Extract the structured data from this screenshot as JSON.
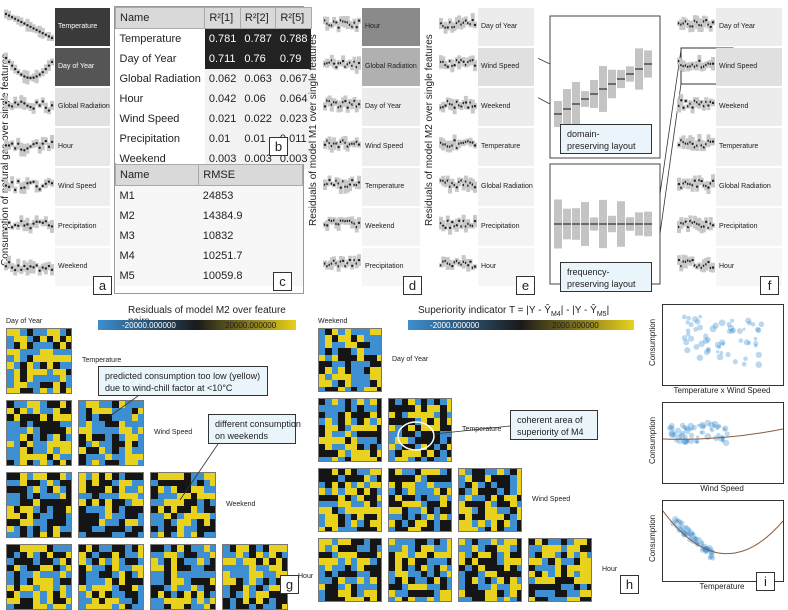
{
  "panel_a": {
    "tag": "a",
    "ylabel": "Consumption of natural gas over single features",
    "features": [
      "Temperature",
      "Day of Year",
      "Global Radiation",
      "Hour",
      "Wind Speed",
      "Precipitation",
      "Weekend"
    ]
  },
  "panel_b": {
    "tag": "b",
    "headers": [
      "Name",
      "R²[1]",
      "R²[2]",
      "R²[5]"
    ],
    "rows": [
      [
        "Temperature",
        "0.781",
        "0.787",
        "0.788"
      ],
      [
        "Day of Year",
        "0.711",
        "0.76",
        "0.79"
      ],
      [
        "Global Radiation",
        "0.062",
        "0.063",
        "0.067"
      ],
      [
        "Hour",
        "0.042",
        "0.06",
        "0.064"
      ],
      [
        "Wind Speed",
        "0.021",
        "0.022",
        "0.023"
      ],
      [
        "Precipitation",
        "0.01",
        "0.01",
        "0.011"
      ],
      [
        "Weekend",
        "0.003",
        "0.003",
        "0.003"
      ]
    ]
  },
  "panel_c": {
    "tag": "c",
    "headers": [
      "Name",
      "RMSE"
    ],
    "rows": [
      [
        "M1",
        "24853"
      ],
      [
        "M2",
        "14384.9"
      ],
      [
        "M3",
        "10832"
      ],
      [
        "M4",
        "10251.7"
      ],
      [
        "M5",
        "10059.8"
      ]
    ]
  },
  "panel_d": {
    "tag": "d",
    "ylabel": "Residuals of model M1 over single features",
    "features": [
      "Hour",
      "Global Radiation",
      "Day of Year",
      "Wind Speed",
      "Temperature",
      "Weekend",
      "Precipitation"
    ]
  },
  "panel_e": {
    "tag": "e",
    "ylabel": "Residuals of model M2 over single features",
    "features": [
      "Day of Year",
      "Wind Speed",
      "Weekend",
      "Temperature",
      "Global Radiation",
      "Precipitation",
      "Hour"
    ]
  },
  "panel_f": {
    "tag": "f",
    "features": [
      "Day of Year",
      "Wind Speed",
      "Weekend",
      "Temperature",
      "Global Radiation",
      "Precipitation",
      "Hour"
    ],
    "callout_top": "domain-\npreserving layout",
    "callout_bottom": "frequency-\npreserving layout"
  },
  "panel_g": {
    "tag": "g",
    "title": "Residuals of model M2 over feature pairs",
    "legend_min": "-20000.000000",
    "legend_max": "20000.000000",
    "features": [
      "Day of Year",
      "Temperature",
      "Wind Speed",
      "Weekend",
      "Hour"
    ],
    "callout1": "predicted consumption too low (yellow)\ndue to wind-chill factor at <10°C",
    "callout2": "different consumption\non weekends"
  },
  "panel_h": {
    "tag": "h",
    "title": "Superiority indicator T = |Y - Ŷ",
    "title_sub1": "M4",
    "title_mid": "| - |Y - Ŷ",
    "title_sub2": "M5",
    "title_end": "|",
    "legend_min": "-2000.000000",
    "legend_max": "2000.000000",
    "features": [
      "Weekend",
      "Day of Year",
      "Temperature",
      "Wind Speed",
      "Hour"
    ],
    "callout": "coherent area of\nsuperiority of M4"
  },
  "panel_i": {
    "tag": "i",
    "ylabel": "Consumption",
    "plots": [
      "Temperature x Wind Speed",
      "Wind Speed",
      "Temperature"
    ]
  },
  "colors": {
    "blue": "#3d8fd1",
    "yellow": "#e8d21d",
    "dark": "#151515",
    "grey": "#bdbdbd",
    "callout_bg": "#eaf4fb"
  }
}
